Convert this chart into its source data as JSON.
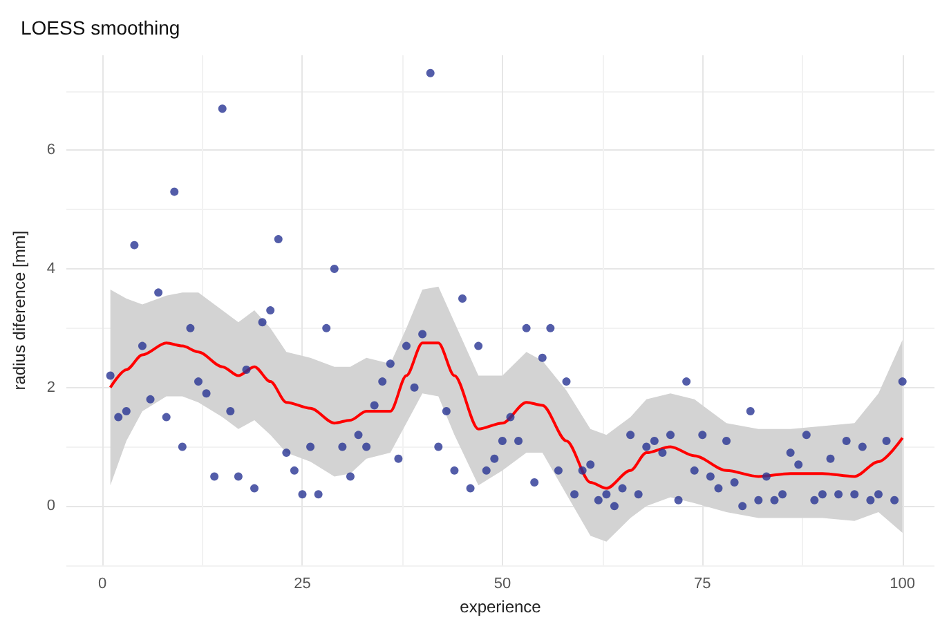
{
  "chart_data": {
    "type": "scatter",
    "title": "LOESS smoothing",
    "xlabel": "experience",
    "ylabel": "radius diference [mm]",
    "xlim": [
      -4.5,
      104
    ],
    "xticks": [
      0,
      25,
      50,
      75,
      100
    ],
    "ylim": [
      -1,
      7.6
    ],
    "yticks": [
      0,
      2,
      4,
      6
    ],
    "grid": true,
    "marker": "circle",
    "series": [
      {
        "color": "#283593",
        "x": [
          1,
          2,
          3,
          4,
          5,
          6,
          7,
          8,
          9,
          10,
          11,
          12,
          13,
          14,
          15,
          16,
          17,
          18,
          19,
          20,
          21,
          22,
          23,
          24,
          25,
          26,
          27,
          28,
          29,
          30,
          31,
          32,
          33,
          34,
          35,
          36,
          37,
          38,
          39,
          40,
          41,
          42,
          43,
          44,
          45,
          46,
          47,
          48,
          49,
          50,
          51,
          52,
          53,
          54,
          55,
          56,
          57,
          58,
          59,
          60,
          61,
          62,
          63,
          64,
          65,
          66,
          67,
          68,
          69,
          70,
          71,
          72,
          73,
          74,
          75,
          76,
          77,
          78,
          79,
          80,
          81,
          82,
          83,
          84,
          85,
          86,
          87,
          88,
          89,
          90,
          91,
          92,
          93,
          94,
          95,
          96,
          97,
          98,
          99,
          100
        ],
        "values": [
          2.2,
          1.5,
          1.6,
          4.4,
          2.7,
          1.8,
          3.6,
          1.5,
          5.3,
          1.0,
          3.0,
          2.1,
          1.9,
          0.5,
          6.7,
          1.6,
          0.5,
          2.3,
          0.3,
          3.1,
          3.3,
          4.5,
          0.9,
          0.6,
          0.2,
          1.0,
          0.2,
          3.0,
          4.0,
          1.0,
          0.5,
          1.2,
          1.0,
          1.7,
          2.1,
          2.4,
          0.8,
          2.7,
          2.0,
          2.9,
          7.3,
          1.0,
          1.6,
          0.6,
          3.5,
          0.3,
          2.7,
          0.6,
          0.8,
          1.1,
          1.5,
          1.1,
          3.0,
          0.4,
          2.5,
          3.0,
          0.6,
          2.1,
          0.2,
          0.6,
          0.7,
          0.1,
          0.2,
          0.0,
          0.3,
          1.2,
          0.2,
          1.0,
          1.1,
          0.9,
          1.2,
          0.1,
          2.1,
          0.6,
          1.2,
          0.5,
          0.3,
          1.1,
          0.4,
          0.0,
          1.6,
          0.1,
          0.5,
          0.1,
          0.2,
          0.9,
          0.7,
          1.2,
          0.1,
          0.2,
          0.8,
          0.2,
          1.1,
          0.2,
          1.0,
          0.1,
          0.2,
          1.1,
          0.1,
          2.1
        ]
      },
      {
        "type": "line",
        "color": "#ff0000",
        "marker": "none",
        "x": [
          1,
          3,
          5,
          8,
          10,
          12,
          15,
          17,
          19,
          21,
          23,
          26,
          29,
          31,
          33,
          36,
          38,
          40,
          42,
          44,
          47,
          50,
          53,
          55,
          58,
          61,
          63,
          66,
          68,
          71,
          74,
          78,
          82,
          86,
          90,
          94,
          97,
          100
        ],
        "values": [
          2.0,
          2.3,
          2.55,
          2.75,
          2.7,
          2.6,
          2.35,
          2.2,
          2.35,
          2.1,
          1.75,
          1.65,
          1.4,
          1.45,
          1.6,
          1.6,
          2.2,
          2.75,
          2.75,
          2.2,
          1.3,
          1.4,
          1.75,
          1.7,
          1.1,
          0.4,
          0.3,
          0.6,
          0.9,
          1.0,
          0.85,
          0.6,
          0.5,
          0.55,
          0.55,
          0.5,
          0.75,
          1.15
        ],
        "lower": [
          0.35,
          1.1,
          1.6,
          1.85,
          1.85,
          1.75,
          1.5,
          1.3,
          1.45,
          1.2,
          0.9,
          0.75,
          0.5,
          0.55,
          0.8,
          0.9,
          1.4,
          1.9,
          1.85,
          1.2,
          0.35,
          0.6,
          0.9,
          0.9,
          0.2,
          -0.5,
          -0.6,
          -0.2,
          0.0,
          0.15,
          0.05,
          -0.1,
          -0.2,
          -0.2,
          -0.2,
          -0.25,
          -0.1,
          -0.45
        ],
        "upper": [
          3.65,
          3.5,
          3.4,
          3.55,
          3.6,
          3.6,
          3.3,
          3.1,
          3.3,
          3.0,
          2.6,
          2.5,
          2.35,
          2.35,
          2.5,
          2.4,
          3.0,
          3.65,
          3.7,
          3.1,
          2.2,
          2.2,
          2.6,
          2.45,
          1.95,
          1.3,
          1.2,
          1.5,
          1.8,
          1.9,
          1.8,
          1.4,
          1.3,
          1.3,
          1.35,
          1.4,
          1.9,
          2.8
        ]
      }
    ]
  }
}
